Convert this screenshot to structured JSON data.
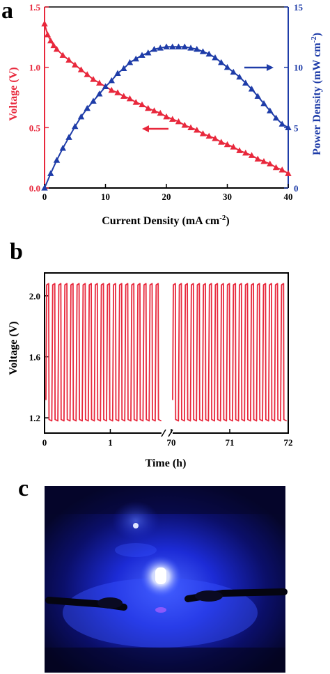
{
  "colors": {
    "voltage": "#e8283c",
    "power": "#1e3ca8",
    "axis_black": "#000000"
  },
  "panels": {
    "a": "a",
    "b": "b",
    "c": "c"
  },
  "chart_data": [
    {
      "type": "line",
      "panel": "a",
      "xlabel": "Current Density (mA cm",
      "xlabel_sup": "-2",
      "xlabel_close": ")",
      "ylabel_left": "Voltage (V)",
      "ylabel_right": "Power Density (mW cm",
      "ylabel_right_sup": "-2",
      "ylabel_right_close": ")",
      "xlim": [
        0,
        40
      ],
      "ylim_left": [
        0,
        1.5
      ],
      "ylim_right": [
        0,
        15
      ],
      "x_ticks": [
        "0",
        "10",
        "20",
        "30",
        "40"
      ],
      "y_left_ticks": [
        "0.0",
        "0.5",
        "1.0",
        "1.5"
      ],
      "y_right_ticks": [
        "0",
        "5",
        "10",
        "15"
      ],
      "series": [
        {
          "axis": "left",
          "marker": "triangle",
          "x": [
            0,
            0.5,
            1,
            1.5,
            2,
            3,
            4,
            5,
            6,
            7,
            8,
            9,
            10,
            11,
            12,
            13,
            14,
            15,
            16,
            17,
            18,
            19,
            20,
            21,
            22,
            23,
            24,
            25,
            26,
            27,
            28,
            29,
            30,
            31,
            32,
            33,
            34,
            35,
            36,
            37,
            38,
            39,
            40
          ],
          "y": [
            1.36,
            1.27,
            1.22,
            1.18,
            1.15,
            1.1,
            1.06,
            1.02,
            0.98,
            0.94,
            0.9,
            0.87,
            0.84,
            0.81,
            0.79,
            0.76,
            0.74,
            0.71,
            0.69,
            0.66,
            0.64,
            0.62,
            0.59,
            0.57,
            0.55,
            0.52,
            0.5,
            0.48,
            0.45,
            0.43,
            0.41,
            0.38,
            0.36,
            0.34,
            0.31,
            0.29,
            0.27,
            0.24,
            0.22,
            0.2,
            0.17,
            0.15,
            0.12
          ]
        },
        {
          "axis": "right",
          "marker": "triangle",
          "x": [
            0,
            1,
            2,
            3,
            4,
            5,
            6,
            7,
            8,
            9,
            10,
            11,
            12,
            13,
            14,
            15,
            16,
            17,
            18,
            19,
            20,
            21,
            22,
            23,
            24,
            25,
            26,
            27,
            28,
            29,
            30,
            31,
            32,
            33,
            34,
            35,
            36,
            37,
            38,
            39,
            40
          ],
          "y": [
            0,
            1.2,
            2.3,
            3.3,
            4.2,
            5.1,
            5.9,
            6.6,
            7.2,
            7.8,
            8.4,
            8.9,
            9.5,
            9.9,
            10.4,
            10.7,
            11.0,
            11.2,
            11.5,
            11.6,
            11.7,
            11.7,
            11.7,
            11.7,
            11.6,
            11.5,
            11.3,
            11.1,
            10.8,
            10.4,
            10.0,
            9.6,
            9.2,
            8.7,
            8.2,
            7.6,
            7.0,
            6.4,
            5.8,
            5.3,
            5.0
          ]
        }
      ]
    },
    {
      "type": "line",
      "panel": "b",
      "xlabel": "Time (h)",
      "ylabel": "Voltage (V)",
      "ylim": [
        1.1,
        2.15
      ],
      "y_ticks": [
        {
          "value": 1.2,
          "label": "1.2"
        },
        {
          "value": 1.6,
          "label": "1.6"
        },
        {
          "value": 2.0,
          "label": "2.0"
        }
      ],
      "x_ticks": [
        {
          "value": 0,
          "label": "0"
        },
        {
          "value": 1,
          "label": "1"
        },
        {
          "value": 70,
          "label": "70"
        },
        {
          "value": 71,
          "label": "71"
        },
        {
          "value": 72,
          "label": "72"
        }
      ],
      "axis_break": true,
      "segments": [
        {
          "x_range": [
            0,
            1.8
          ],
          "cycles": 19
        },
        {
          "x_range": [
            70,
            72
          ],
          "cycles": 19
        }
      ],
      "charge_voltage": 2.08,
      "discharge_voltage": 1.18
    }
  ],
  "photo": {
    "panel": "c",
    "subject": "LED-illuminated cell photograph"
  }
}
